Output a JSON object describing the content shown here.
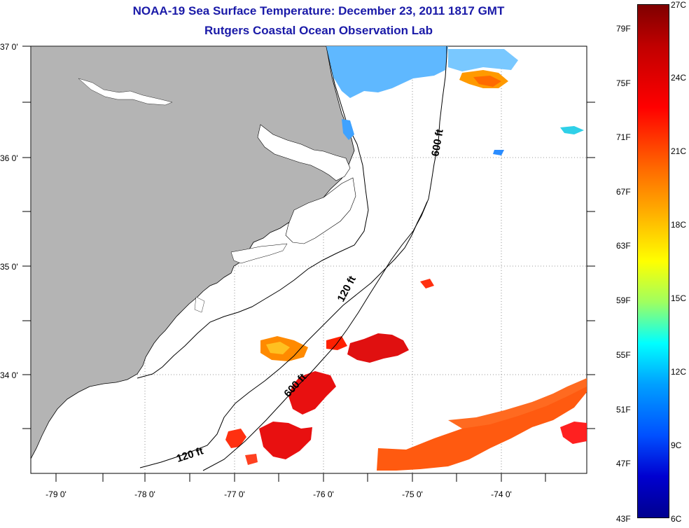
{
  "header": {
    "title": "NOAA-19 Sea Surface Temperature:  December 23, 2011 1817 GMT",
    "subtitle": "Rutgers Coastal Ocean Observation Lab"
  },
  "map": {
    "longitude_labels": [
      "-79 0'",
      "-78 0'",
      "-77 0'",
      "-76 0'",
      "-75 0'",
      "-74 0'"
    ],
    "latitude_labels": [
      "37 0'",
      "36 0'",
      "35 0'",
      "34 0'"
    ],
    "isobath_labels": [
      "600 ft",
      "120 ft",
      "600 ft",
      "120 ft"
    ]
  },
  "colorbar": {
    "fahrenheit_labels": [
      "79F",
      "75F",
      "71F",
      "67F",
      "63F",
      "59F",
      "55F",
      "51F",
      "47F",
      "43F"
    ],
    "celsius_labels": [
      "27C",
      "24C",
      "21C",
      "18C",
      "15C",
      "12C",
      "9C",
      "6C"
    ]
  },
  "colors": {
    "land": "#b4b4b4",
    "title": "#1a1aa8"
  }
}
